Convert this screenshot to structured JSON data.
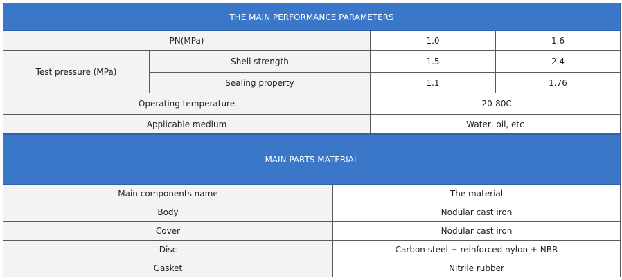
{
  "performance": {
    "title": "THE MAIN PERFORMANCE PARAMETERS",
    "pn_label": "PN(MPa)",
    "pn_values": [
      "1.0",
      "1.6"
    ],
    "test_pressure_label": "Test pressure (MPa)",
    "shell_strength_label": "Shell strength",
    "shell_strength_values": [
      "1.5",
      "2.4"
    ],
    "sealing_label": "Sealing property",
    "sealing_values": [
      "1.1",
      "1.76"
    ],
    "operating_temp_label": "Operating temperature",
    "operating_temp_value": "-20-80C",
    "medium_label": "Applicable medium",
    "medium_value": "Water, oil, etc"
  },
  "materials": {
    "title": "MAIN PARTS MATERIAL",
    "header": [
      "Main components name",
      "The material"
    ],
    "rows": [
      [
        "Body",
        "Nodular cast iron"
      ],
      [
        "Cover",
        "Nodular cast iron"
      ],
      [
        "Disc",
        "Carbon steel + reinforced nylon + NBR"
      ],
      [
        "Gasket",
        "Nitrile rubber"
      ]
    ]
  },
  "colors": {
    "header_bg": "#3a77c9",
    "label_bg": "#f3f3f3",
    "value_bg": "#ffffff"
  }
}
